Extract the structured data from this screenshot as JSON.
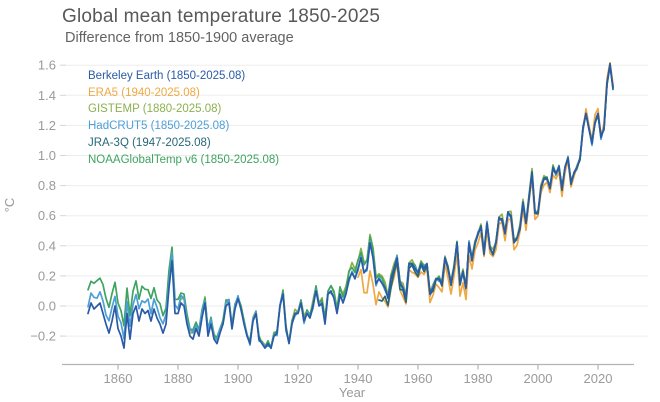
{
  "header": {
    "title": "Global mean temperature 1850-2025",
    "subtitle": "Difference from 1850-1900 average"
  },
  "palette": {
    "background": "#ffffff",
    "grid": "#ededed",
    "axis_line": "#b3b3b3",
    "tick_text": "#9a9a9a",
    "title_text": "#58585a",
    "subtitle_text": "#636363"
  },
  "chart_data": {
    "type": "line",
    "title": "Global mean temperature 1850-2025",
    "subtitle": "Difference from 1850-1900 average",
    "xlabel": "Year",
    "ylabel": "°C",
    "x_range": [
      1850,
      2025
    ],
    "ylim": [
      -0.35,
      1.65
    ],
    "grid": "horizontal-only",
    "legend_position": "top-left",
    "x_ticks": [
      1860,
      1880,
      1900,
      1920,
      1940,
      1960,
      1980,
      2000,
      2020
    ],
    "y_ticks": [
      {
        "value": -0.2,
        "label": "−0.2"
      },
      {
        "value": 0.0,
        "label": "0.0"
      },
      {
        "value": 0.2,
        "label": "0.2"
      },
      {
        "value": 0.4,
        "label": "0.4"
      },
      {
        "value": 0.6,
        "label": "0.6"
      },
      {
        "value": 0.8,
        "label": "0.8"
      },
      {
        "value": 1.0,
        "label": "1.0"
      },
      {
        "value": 1.2,
        "label": "1.2"
      },
      {
        "value": 1.4,
        "label": "1.4"
      },
      {
        "value": 1.6,
        "label": "1.6"
      }
    ],
    "base_years_start": 1850,
    "base_values": [
      -0.05,
      0.02,
      -0.02,
      0.0,
      0.02,
      -0.05,
      -0.12,
      -0.18,
      -0.1,
      0.0,
      -0.15,
      -0.2,
      -0.28,
      -0.05,
      -0.22,
      -0.05,
      0.0,
      -0.1,
      -0.02,
      -0.05,
      -0.03,
      -0.1,
      -0.02,
      -0.08,
      -0.12,
      -0.18,
      -0.12,
      0.12,
      0.3,
      -0.05,
      -0.05,
      0.02,
      0.0,
      -0.12,
      -0.2,
      -0.22,
      -0.15,
      -0.2,
      -0.08,
      0.02,
      -0.2,
      -0.12,
      -0.22,
      -0.25,
      -0.18,
      -0.12,
      0.0,
      0.02,
      -0.15,
      -0.02,
      0.05,
      -0.02,
      -0.12,
      -0.2,
      -0.25,
      -0.1,
      -0.05,
      -0.22,
      -0.25,
      -0.28,
      -0.25,
      -0.28,
      -0.2,
      -0.18,
      0.0,
      0.08,
      -0.15,
      -0.25,
      -0.12,
      -0.05,
      -0.05,
      0.02,
      -0.1,
      -0.05,
      -0.08,
      0.0,
      0.1,
      0.0,
      0.02,
      -0.12,
      0.08,
      0.1,
      0.05,
      -0.05,
      0.08,
      0.02,
      0.08,
      0.18,
      0.22,
      0.18,
      0.25,
      0.32,
      0.22,
      0.25,
      0.42,
      0.32,
      0.15,
      0.18,
      0.15,
      0.12,
      0.05,
      0.18,
      0.25,
      0.32,
      0.15,
      0.12,
      0.05,
      0.28,
      0.28,
      0.25,
      0.22,
      0.28,
      0.25,
      0.28,
      0.08,
      0.12,
      0.18,
      0.18,
      0.15,
      0.32,
      0.25,
      0.15,
      0.25,
      0.42,
      0.15,
      0.22,
      0.12,
      0.42,
      0.3,
      0.42,
      0.48,
      0.52,
      0.35,
      0.55,
      0.38,
      0.35,
      0.42,
      0.58,
      0.58,
      0.48,
      0.62,
      0.6,
      0.42,
      0.45,
      0.52,
      0.68,
      0.55,
      0.72,
      0.88,
      0.62,
      0.62,
      0.78,
      0.85,
      0.85,
      0.78,
      0.92,
      0.88,
      0.92,
      0.78,
      0.92,
      0.98,
      0.82,
      0.88,
      0.92,
      0.98,
      1.18,
      1.28,
      1.18,
      1.08,
      1.22,
      1.28,
      1.12,
      1.18,
      1.48,
      1.6,
      1.45
    ],
    "series_note": "Six nearly-identical annual anomaly series; each = base_values + piecewise-linear offsets (+ tiny dataset scatter).",
    "series": [
      {
        "key": "berkeley",
        "name": "Berkeley Earth",
        "legend_label": "Berkeley Earth (1850-2025.08)",
        "color": "#2b5ba6",
        "start_year": 1850,
        "end_year": 2025,
        "offsets": {},
        "wiggle": {
          "amp": 0,
          "freq": 0,
          "phase": 0
        }
      },
      {
        "key": "era5",
        "name": "ERA5",
        "legend_label": "ERA5 (1940-2025.08)",
        "color": "#f0a843",
        "start_year": 1940,
        "end_year": 2025,
        "offsets": {
          "1940": -0.06,
          "1942": -0.12,
          "1944": -0.2,
          "1947": -0.1,
          "1952": -0.05,
          "1960": -0.04,
          "1968": -0.05,
          "1976": -0.08,
          "1982": -0.03,
          "1992": -0.04,
          "2000": -0.03,
          "2008": -0.04,
          "2014": 0,
          "2019": 0.04,
          "2021": 0.02,
          "2024": 0.03,
          "2025": 0.02
        },
        "wiggle": {
          "amp": 0.014,
          "freq": 2.0,
          "phase": 3.1
        }
      },
      {
        "key": "gistemp",
        "name": "GISTEMP",
        "legend_label": "GISTEMP (1880-2025.08)",
        "color": "#8db04e",
        "start_year": 1880,
        "end_year": 2025,
        "offsets": {
          "1880": 0.04,
          "1895": 0.02,
          "1910": 0.01,
          "1930": 0.03,
          "1938": 0.06,
          "1944": 0.06,
          "1952": 0.02,
          "1965": 0.01,
          "1998": 0.02,
          "2010": 0,
          "2025": 0
        },
        "wiggle": {
          "amp": 0.013,
          "freq": 1.9,
          "phase": 0.5
        }
      },
      {
        "key": "hadcrut5",
        "name": "HadCRUT5",
        "legend_label": "HadCRUT5 (1850-2025.08)",
        "color": "#4d9fd7",
        "start_year": 1850,
        "end_year": 2025,
        "offsets": {
          "1850": 0.06,
          "1858": 0.08,
          "1868": 0.07,
          "1878": 0.05,
          "1888": 0.03,
          "1900": 0.01,
          "1910": 0,
          "2025": 0
        },
        "wiggle": {
          "amp": 0.016,
          "freq": 2.1,
          "phase": 2.4
        }
      },
      {
        "key": "jra3q",
        "name": "JRA-3Q",
        "legend_label": "JRA-3Q (1947-2025.08)",
        "color": "#266878",
        "start_year": 1947,
        "end_year": 2025,
        "offsets": {
          "1947": -0.15,
          "1949": -0.06,
          "1953": -0.03,
          "1958": -0.02,
          "1965": -0.01,
          "1972": 0,
          "2025": 0
        },
        "wiggle": {
          "amp": 0.012,
          "freq": 2.2,
          "phase": 4.0
        }
      },
      {
        "key": "noaa",
        "name": "NOAAGlobalTemp v6",
        "legend_label": "NOAAGlobalTemp v6 (1850-2025.08)",
        "color": "#3ea45f",
        "start_year": 1850,
        "end_year": 2025,
        "offsets": {
          "1850": 0.15,
          "1855": 0.18,
          "1862": 0.16,
          "1870": 0.15,
          "1878": 0.1,
          "1885": 0.05,
          "1895": 0.03,
          "1905": 0.01,
          "1920": 0.01,
          "1935": 0.04,
          "1944": 0.05,
          "1950": 0.01,
          "1960": 0.01,
          "1980": 0,
          "2025": 0
        },
        "wiggle": {
          "amp": 0.012,
          "freq": 2.3,
          "phase": 1.2
        }
      }
    ],
    "draw_order": [
      "gistemp",
      "noaa",
      "hadcrut5",
      "era5",
      "jra3q",
      "berkeley"
    ]
  }
}
